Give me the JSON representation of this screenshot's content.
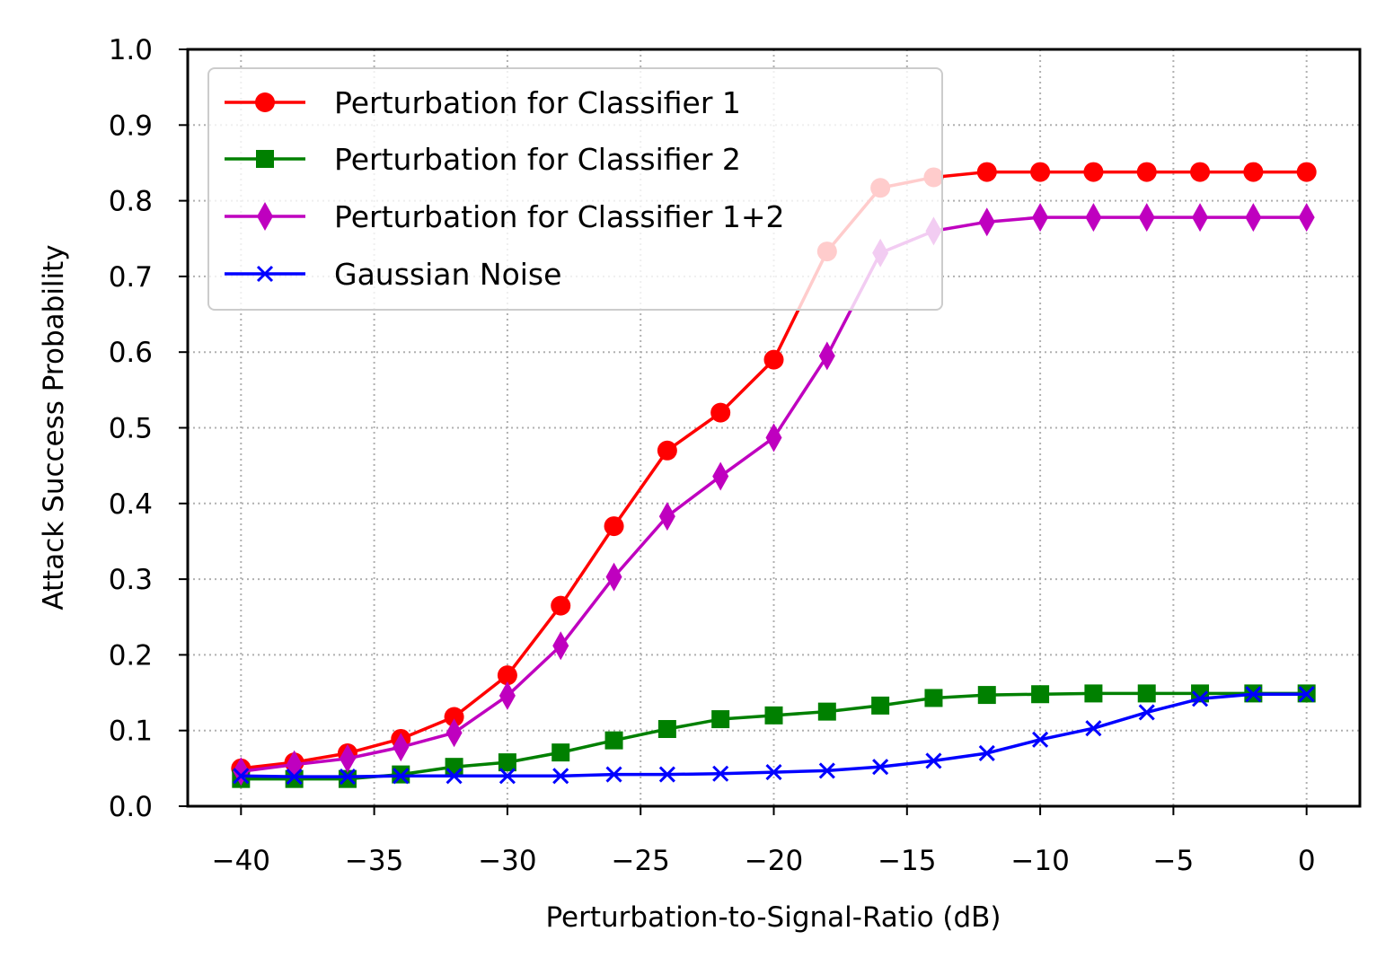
{
  "chart_data": {
    "type": "line",
    "title": "",
    "xlabel": "Perturbation-to-Signal-Ratio (dB)",
    "ylabel": "Attack Success Probability",
    "xlim": [
      -42,
      2
    ],
    "ylim": [
      0.0,
      1.0
    ],
    "grid": true,
    "legend_position": "top-left",
    "x": [
      -40,
      -38,
      -36,
      -34,
      -32,
      -30,
      -28,
      -26,
      -24,
      -22,
      -20,
      -18,
      -16,
      -14,
      -12,
      -10,
      -8,
      -6,
      -4,
      -2,
      0
    ],
    "xticks": [
      -40,
      -35,
      -30,
      -25,
      -20,
      -15,
      -10,
      -5,
      0
    ],
    "xtick_labels": [
      "−40",
      "−35",
      "−30",
      "−25",
      "−20",
      "−15",
      "−10",
      "−5",
      "0"
    ],
    "yticks": [
      0.0,
      0.1,
      0.2,
      0.3,
      0.4,
      0.5,
      0.6,
      0.7,
      0.8,
      0.9,
      1.0
    ],
    "ytick_labels": [
      "0.0",
      "0.1",
      "0.2",
      "0.3",
      "0.4",
      "0.5",
      "0.6",
      "0.7",
      "0.8",
      "0.9",
      "1.0"
    ],
    "series": [
      {
        "name": "Perturbation for Classifier 1",
        "color": "#ff0000",
        "marker": "circle",
        "values": [
          0.05,
          0.058,
          0.07,
          0.089,
          0.118,
          0.173,
          0.265,
          0.37,
          0.47,
          0.52,
          0.59,
          0.733,
          0.817,
          0.831,
          0.838,
          0.838,
          0.838,
          0.838,
          0.838,
          0.838,
          0.838
        ]
      },
      {
        "name": "Perturbation for Classifier 2",
        "color": "#008000",
        "marker": "square",
        "values": [
          0.036,
          0.036,
          0.036,
          0.042,
          0.052,
          0.058,
          0.071,
          0.087,
          0.102,
          0.115,
          0.12,
          0.125,
          0.133,
          0.143,
          0.147,
          0.148,
          0.149,
          0.149,
          0.149,
          0.149,
          0.149
        ]
      },
      {
        "name": "Perturbation for Classifier 1+2",
        "color": "#bf00bf",
        "marker": "thin-diamond",
        "values": [
          0.046,
          0.055,
          0.063,
          0.078,
          0.097,
          0.146,
          0.212,
          0.303,
          0.383,
          0.436,
          0.487,
          0.595,
          0.731,
          0.76,
          0.772,
          0.778,
          0.778,
          0.778,
          0.778,
          0.778,
          0.778
        ]
      },
      {
        "name": "Gaussian Noise",
        "color": "#0000ff",
        "marker": "x",
        "values": [
          0.04,
          0.039,
          0.039,
          0.04,
          0.04,
          0.04,
          0.04,
          0.042,
          0.042,
          0.043,
          0.045,
          0.047,
          0.052,
          0.06,
          0.07,
          0.088,
          0.103,
          0.124,
          0.142,
          0.148,
          0.148
        ]
      }
    ]
  }
}
